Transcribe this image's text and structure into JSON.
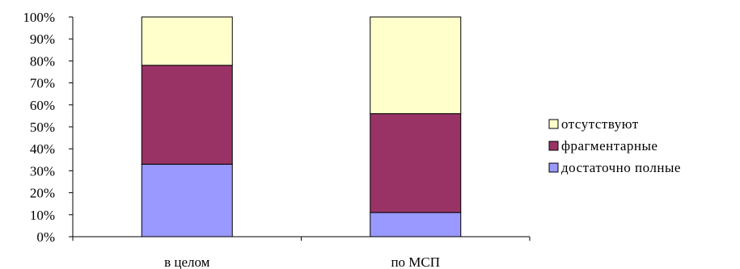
{
  "chart_data": {
    "type": "bar",
    "stacked": true,
    "percent": true,
    "categories": [
      "в целом",
      "по МСП"
    ],
    "series": [
      {
        "name": "достаточно полные",
        "values": [
          33,
          11
        ],
        "color": "#9999ff"
      },
      {
        "name": "фрагментарные",
        "values": [
          45,
          45
        ],
        "color": "#993366"
      },
      {
        "name": "отсутствуют",
        "values": [
          22,
          44
        ],
        "color": "#ffffcc"
      }
    ],
    "y_ticks": [
      "0%",
      "10%",
      "20%",
      "30%",
      "40%",
      "50%",
      "60%",
      "70%",
      "80%",
      "90%",
      "100%"
    ],
    "ylim": [
      0,
      100
    ],
    "grid": false,
    "legend_position": "right",
    "legend_order": [
      "отсутствуют",
      "фрагментарные",
      "достаточно полные"
    ]
  }
}
